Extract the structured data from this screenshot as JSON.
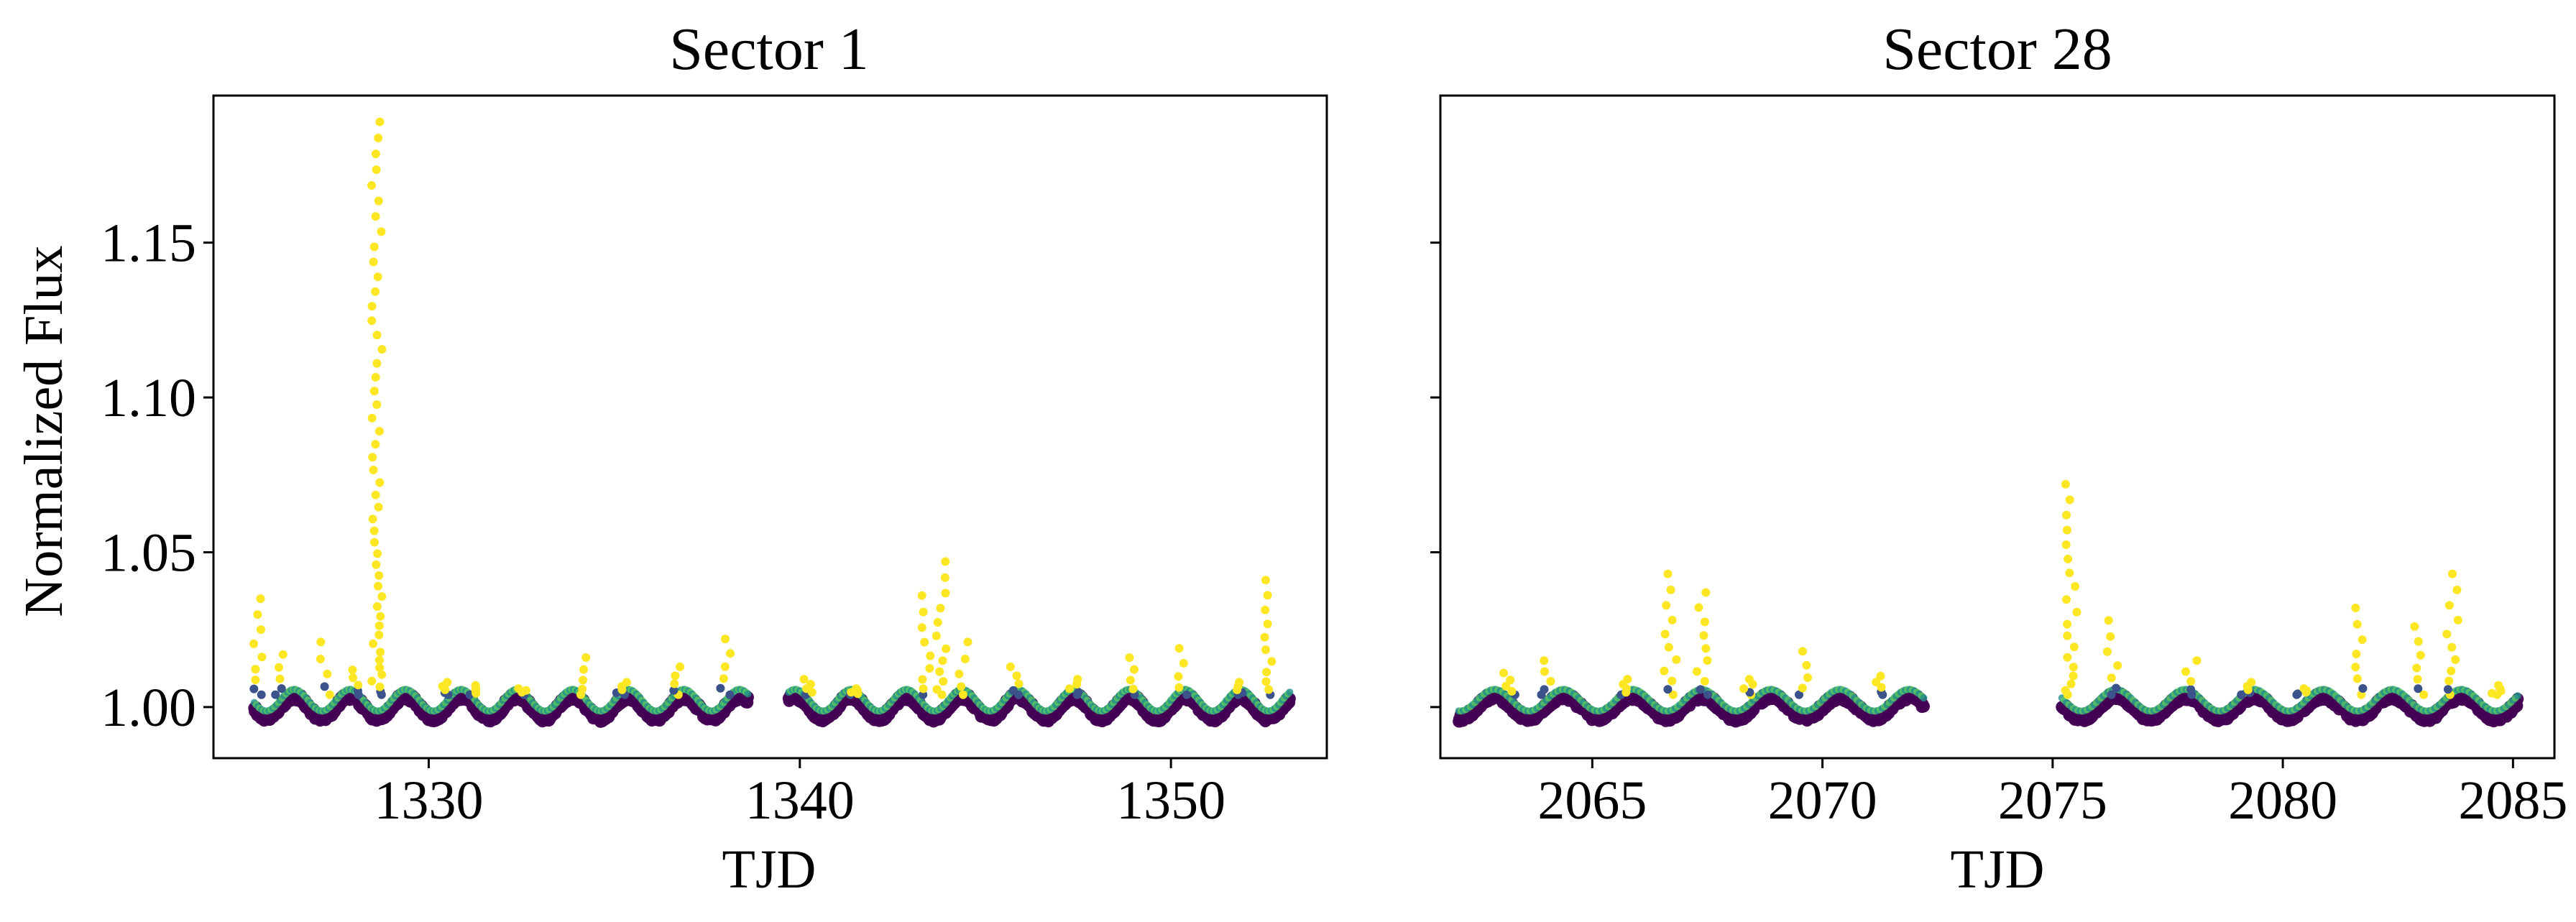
{
  "figure": {
    "ylabel": "Normalized Flux"
  },
  "chart_data": [
    {
      "type": "scatter",
      "title": "Sector 1",
      "xlabel": "TJD",
      "ylabel": "Normalized Flux",
      "xlim": [
        1324.2,
        1354.2
      ],
      "ylim": [
        0.9835,
        1.1975
      ],
      "xticks": [
        1330,
        1340,
        1350
      ],
      "xtick_labels": [
        "1330",
        "1340",
        "1350"
      ],
      "yticks": [
        1.0,
        1.05,
        1.1,
        1.15
      ],
      "ytick_labels": [
        "1.00",
        "1.05",
        "1.10",
        "1.15"
      ],
      "grid": false,
      "colormap": [
        "#440154",
        "#3b528b",
        "#21918c",
        "#5ec962",
        "#fde725"
      ],
      "baseline": {
        "segments": [
          [
            1325.3,
            1338.6
          ],
          [
            1339.7,
            1353.2
          ]
        ],
        "period_days": 1.5,
        "amplitude": 0.0035
      },
      "flares": [
        {
          "t": 1325.4,
          "peak": 1.035
        },
        {
          "t": 1326.0,
          "peak": 1.017
        },
        {
          "t": 1327.2,
          "peak": 1.021
        },
        {
          "t": 1328.0,
          "peak": 1.012
        },
        {
          "t": 1328.6,
          "peak": 1.189
        },
        {
          "t": 1330.4,
          "peak": 1.008
        },
        {
          "t": 1331.2,
          "peak": 1.007
        },
        {
          "t": 1332.5,
          "peak": 1.006
        },
        {
          "t": 1334.1,
          "peak": 1.016
        },
        {
          "t": 1335.2,
          "peak": 1.008
        },
        {
          "t": 1336.7,
          "peak": 1.013
        },
        {
          "t": 1338.0,
          "peak": 1.022
        },
        {
          "t": 1340.2,
          "peak": 1.009
        },
        {
          "t": 1341.5,
          "peak": 1.006
        },
        {
          "t": 1343.4,
          "peak": 1.036
        },
        {
          "t": 1343.8,
          "peak": 1.047
        },
        {
          "t": 1344.4,
          "peak": 1.021
        },
        {
          "t": 1345.8,
          "peak": 1.013
        },
        {
          "t": 1347.4,
          "peak": 1.009
        },
        {
          "t": 1348.9,
          "peak": 1.016
        },
        {
          "t": 1350.3,
          "peak": 1.019
        },
        {
          "t": 1351.8,
          "peak": 1.008
        },
        {
          "t": 1352.6,
          "peak": 1.041
        }
      ]
    },
    {
      "type": "scatter",
      "title": "Sector 28",
      "xlabel": "TJD",
      "ylabel": "",
      "xlim": [
        2061.7,
        2085.9
      ],
      "ylim": [
        0.9835,
        1.1975
      ],
      "xticks": [
        2065,
        2070,
        2075,
        2080,
        2085
      ],
      "xtick_labels": [
        "2065",
        "2070",
        "2075",
        "2080",
        "2085"
      ],
      "yticks": [
        1.0,
        1.05,
        1.1,
        1.15
      ],
      "ytick_labels": [
        "",
        "",
        "",
        ""
      ],
      "grid": false,
      "colormap": [
        "#440154",
        "#3b528b",
        "#21918c",
        "#5ec962",
        "#fde725"
      ],
      "baseline": {
        "segments": [
          [
            2062.1,
            2072.2
          ],
          [
            2075.2,
            2085.1
          ]
        ],
        "period_days": 1.5,
        "amplitude": 0.0035
      },
      "flares": [
        {
          "t": 2063.2,
          "peak": 1.011
        },
        {
          "t": 2064.0,
          "peak": 1.015
        },
        {
          "t": 2065.7,
          "peak": 1.009
        },
        {
          "t": 2066.7,
          "peak": 1.043
        },
        {
          "t": 2067.4,
          "peak": 1.037
        },
        {
          "t": 2068.4,
          "peak": 1.009
        },
        {
          "t": 2069.6,
          "peak": 1.018
        },
        {
          "t": 2071.3,
          "peak": 1.01
        },
        {
          "t": 2075.4,
          "peak": 1.072
        },
        {
          "t": 2076.3,
          "peak": 1.028
        },
        {
          "t": 2078.0,
          "peak": 1.015
        },
        {
          "t": 2079.2,
          "peak": 1.008
        },
        {
          "t": 2080.4,
          "peak": 1.006
        },
        {
          "t": 2081.7,
          "peak": 1.032
        },
        {
          "t": 2083.0,
          "peak": 1.026
        },
        {
          "t": 2083.7,
          "peak": 1.043
        },
        {
          "t": 2084.6,
          "peak": 1.007
        }
      ]
    }
  ]
}
